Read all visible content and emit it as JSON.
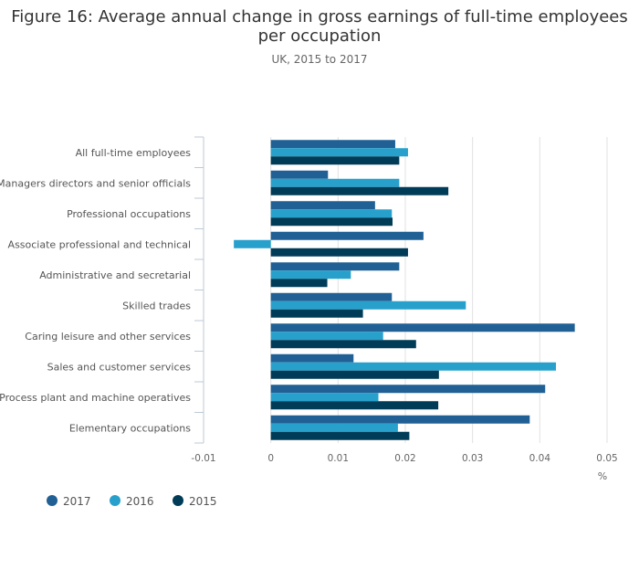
{
  "chart_data": {
    "type": "bar",
    "orientation": "horizontal",
    "title": "Figure 16: Average annual change in gross earnings of full-time employees per occupation",
    "title_lines": [
      "Figure 16: Average annual change in gross earnings of full-time employees",
      "per occupation"
    ],
    "subtitle": "UK, 2015 to 2017",
    "xlabel": "%",
    "xlim": [
      -0.01,
      0.05
    ],
    "xticks": [
      -0.01,
      0,
      0.01,
      0.02,
      0.03,
      0.04,
      0.05
    ],
    "xtick_labels": [
      "-0.01",
      "0",
      "0.01",
      "0.02",
      "0.03",
      "0.04",
      "0.05"
    ],
    "categories": [
      "All full-time employees",
      "Managers directors and senior officials",
      "Professional occupations",
      "Associate professional and technical",
      "Administrative and secretarial",
      "Skilled trades",
      "Caring leisure and other services",
      "Sales and customer services",
      "Process plant and machine operatives",
      "Elementary occupations"
    ],
    "series": [
      {
        "name": "2017",
        "color": "#206095",
        "values": [
          0.0185,
          0.0085,
          0.0155,
          0.0227,
          0.0191,
          0.018,
          0.0452,
          0.0123,
          0.0408,
          0.0385
        ]
      },
      {
        "name": "2016",
        "color": "#27a0cc",
        "values": [
          0.0204,
          0.0191,
          0.018,
          -0.0055,
          0.0119,
          0.029,
          0.0167,
          0.0424,
          0.016,
          0.0189
        ]
      },
      {
        "name": "2015",
        "color": "#003c57",
        "values": [
          0.0191,
          0.0264,
          0.0181,
          0.0204,
          0.0084,
          0.0137,
          0.0216,
          0.025,
          0.0249,
          0.0206
        ]
      }
    ],
    "grid": true,
    "legend_position": "bottom-left"
  }
}
